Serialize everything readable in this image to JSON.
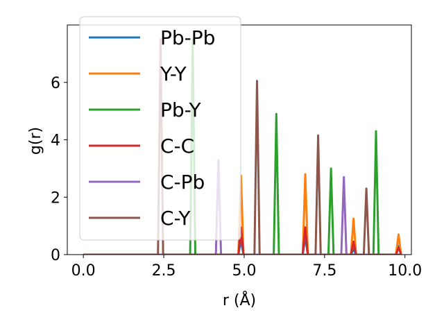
{
  "chart_data": {
    "type": "line",
    "xlabel": "r (Å)",
    "ylabel": "g(r)",
    "xlim": [
      -0.5,
      10.2
    ],
    "ylim": [
      0,
      8
    ],
    "xticks": [
      0.0,
      2.5,
      5.0,
      7.5,
      10.0
    ],
    "xtick_labels": [
      "0.0",
      "2.5",
      "5.0",
      "7.5",
      "10.0"
    ],
    "yticks": [
      0,
      2,
      4,
      6
    ],
    "ytick_labels": [
      "0",
      "2",
      "4",
      "6"
    ],
    "grid": false,
    "legend_position": "upper-left",
    "series": [
      {
        "name": "Pb-Pb",
        "color": "#1f77b4",
        "peaks": [
          [
            4.9,
            0.5
          ],
          [
            6.9,
            0.6
          ],
          [
            8.4,
            0.2
          ],
          [
            9.8,
            0.3
          ]
        ]
      },
      {
        "name": "Y-Y",
        "color": "#ff7f0e",
        "peaks": [
          [
            4.9,
            2.75
          ],
          [
            6.9,
            2.8
          ],
          [
            8.4,
            1.25
          ],
          [
            9.8,
            0.7
          ]
        ]
      },
      {
        "name": "Pb-Y",
        "color": "#2ca02c",
        "peaks": [
          [
            3.4,
            7.5
          ],
          [
            6.0,
            4.9
          ],
          [
            7.7,
            3.0
          ],
          [
            9.1,
            4.3
          ]
        ]
      },
      {
        "name": "C-C",
        "color": "#d62728",
        "peaks": [
          [
            4.9,
            0.95
          ],
          [
            6.9,
            0.95
          ],
          [
            8.4,
            0.45
          ],
          [
            9.8,
            0.25
          ]
        ]
      },
      {
        "name": "C-Pb",
        "color": "#9467bd",
        "peaks": [
          [
            4.2,
            3.3
          ],
          [
            8.1,
            2.7
          ]
        ]
      },
      {
        "name": "C-Y",
        "color": "#8c564b",
        "peaks": [
          [
            2.4,
            7.5
          ],
          [
            5.4,
            6.05
          ],
          [
            7.3,
            4.15
          ],
          [
            8.8,
            2.3
          ]
        ]
      }
    ]
  }
}
